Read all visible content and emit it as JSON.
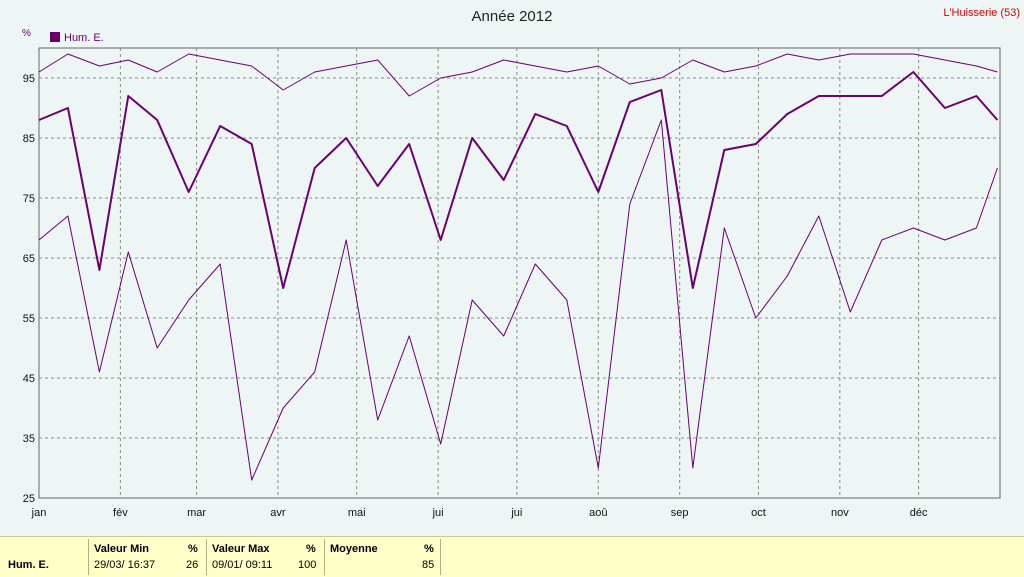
{
  "header": {
    "title": "Année 2012",
    "station": "L'Huisserie (53)"
  },
  "chart_data": {
    "type": "line",
    "title": "Année 2012",
    "ylabel": "%",
    "ylim": [
      25,
      100
    ],
    "yticks": [
      25,
      35,
      45,
      55,
      65,
      75,
      85,
      95
    ],
    "months": [
      "jan",
      "fév",
      "mar",
      "avr",
      "mai",
      "jui",
      "jui",
      "aoû",
      "sep",
      "oct",
      "nov",
      "déc"
    ],
    "legend": {
      "label": "Hum. E.",
      "placement": "top-left"
    },
    "grid": true,
    "colors": {
      "series": "#6a0070",
      "grid": "#8a8a8a"
    },
    "x_unit": "day-of-year",
    "series": [
      {
        "name": "Hum. E.",
        "role": "max",
        "x": [
          1,
          12,
          24,
          35,
          46,
          58,
          70,
          82,
          94,
          106,
          118,
          130,
          142,
          154,
          166,
          178,
          190,
          202,
          214,
          226,
          238,
          250,
          262,
          274,
          286,
          298,
          310,
          322,
          334,
          346,
          358,
          366
        ],
        "y": [
          96,
          99,
          97,
          98,
          96,
          99,
          98,
          97,
          93,
          96,
          97,
          98,
          92,
          95,
          96,
          98,
          97,
          96,
          97,
          94,
          95,
          98,
          96,
          97,
          99,
          98,
          99,
          99,
          99,
          98,
          97,
          96
        ]
      },
      {
        "name": "Hum. E.",
        "role": "mean",
        "x": [
          1,
          12,
          24,
          35,
          46,
          58,
          70,
          82,
          94,
          106,
          118,
          130,
          142,
          154,
          166,
          178,
          190,
          202,
          214,
          226,
          238,
          250,
          262,
          274,
          286,
          298,
          310,
          322,
          334,
          346,
          358,
          366
        ],
        "y": [
          88,
          90,
          63,
          92,
          88,
          76,
          87,
          84,
          60,
          80,
          85,
          77,
          84,
          68,
          85,
          78,
          89,
          87,
          76,
          91,
          93,
          60,
          83,
          84,
          89,
          92,
          92,
          92,
          96,
          90,
          92,
          88
        ]
      },
      {
        "name": "Hum. E.",
        "role": "min",
        "x": [
          1,
          12,
          24,
          35,
          46,
          58,
          70,
          82,
          94,
          106,
          118,
          130,
          142,
          154,
          166,
          178,
          190,
          202,
          214,
          226,
          238,
          250,
          262,
          274,
          286,
          298,
          310,
          322,
          334,
          346,
          358,
          366
        ],
        "y": [
          68,
          72,
          46,
          66,
          50,
          58,
          64,
          28,
          40,
          46,
          68,
          38,
          52,
          34,
          58,
          52,
          64,
          58,
          30,
          74,
          88,
          30,
          70,
          55,
          62,
          72,
          56,
          68,
          70,
          68,
          70,
          80
        ]
      }
    ]
  },
  "summary": {
    "series_label": "Hum. E.",
    "min": {
      "header": "Valeur Min",
      "unit": "%",
      "date": "29/03/ 16:37",
      "value": "26"
    },
    "max": {
      "header": "Valeur Max",
      "unit": "%",
      "date": "09/01/ 09:11",
      "value": "100"
    },
    "mean": {
      "header": "Moyenne",
      "unit": "%",
      "value": "85"
    }
  }
}
